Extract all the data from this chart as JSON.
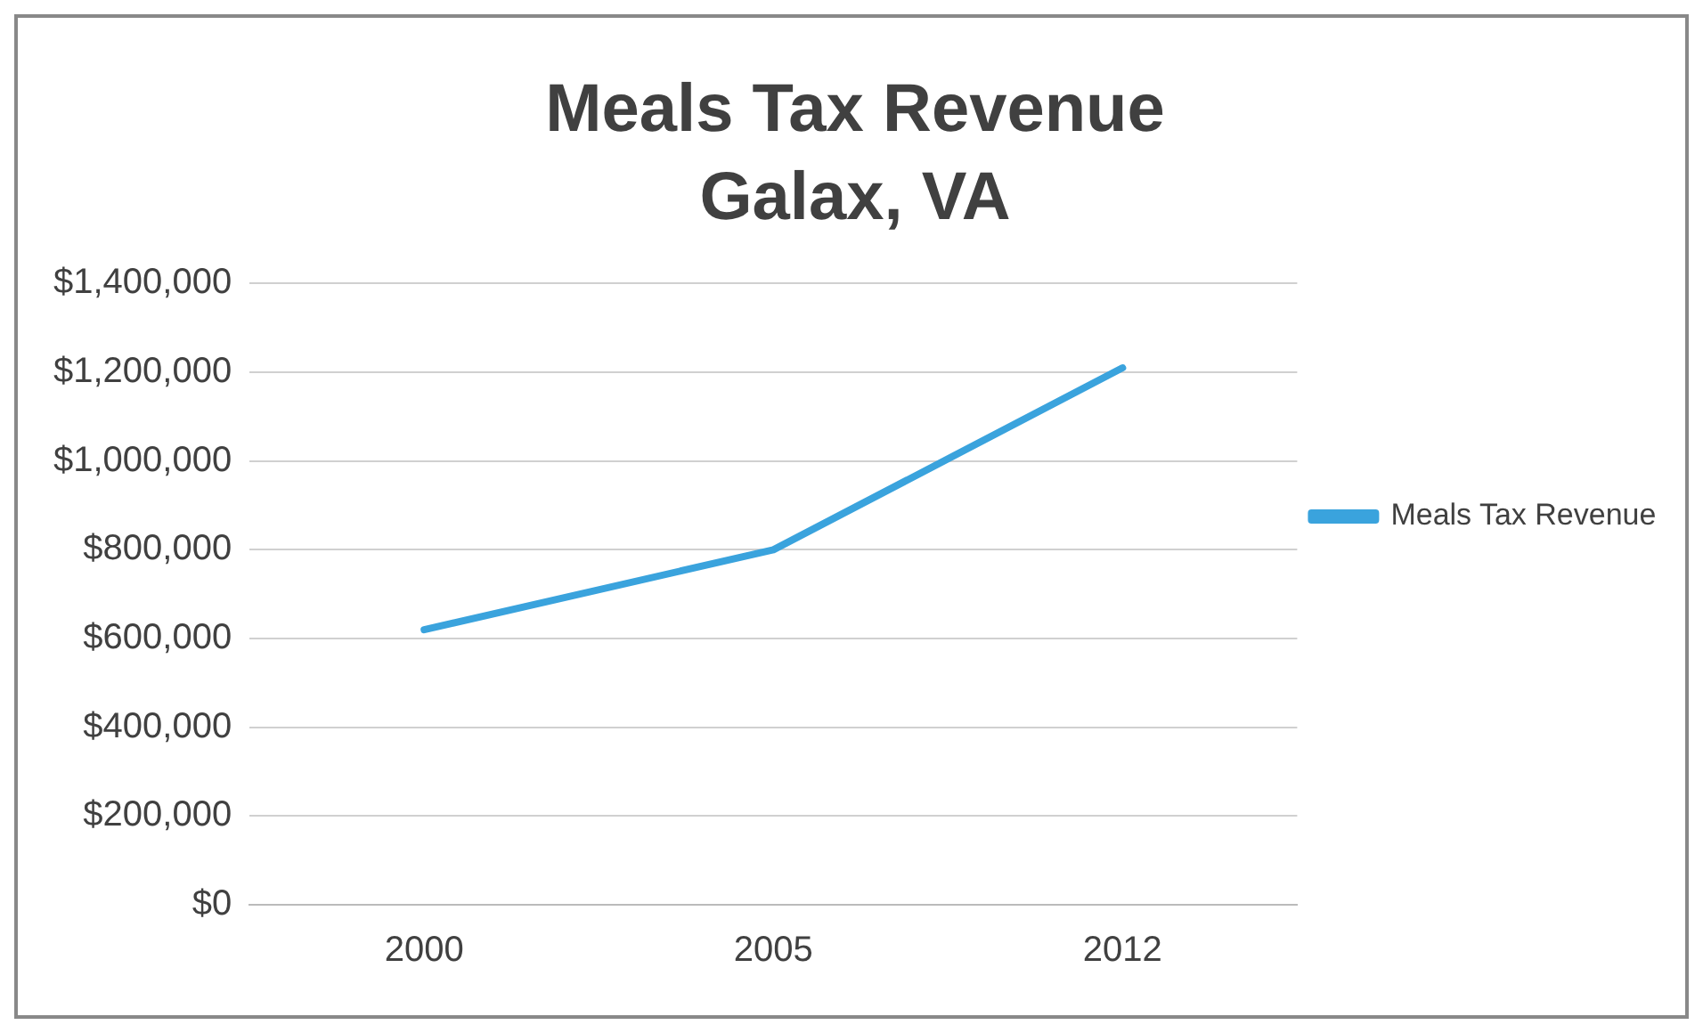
{
  "chart_data": {
    "type": "line",
    "title": "Meals Tax Revenue",
    "subtitle": "Galax, VA",
    "categories": [
      "2000",
      "2005",
      "2012"
    ],
    "series": [
      {
        "name": "Meals Tax Revenue",
        "color": "#3aa3dd",
        "values": [
          620000,
          800000,
          1210000
        ]
      }
    ],
    "ylim": [
      0,
      1400000
    ],
    "yticks": [
      {
        "value": 0,
        "label": "$0"
      },
      {
        "value": 200000,
        "label": "$200,000"
      },
      {
        "value": 400000,
        "label": "$400,000"
      },
      {
        "value": 600000,
        "label": "$600,000"
      },
      {
        "value": 800000,
        "label": "$800,000"
      },
      {
        "value": 1000000,
        "label": "$1,000,000"
      },
      {
        "value": 1200000,
        "label": "$1,200,000"
      },
      {
        "value": 1400000,
        "label": "$1,400,000"
      }
    ],
    "grid": "y",
    "legend": "right",
    "marker": "none",
    "line_style": "solid"
  }
}
